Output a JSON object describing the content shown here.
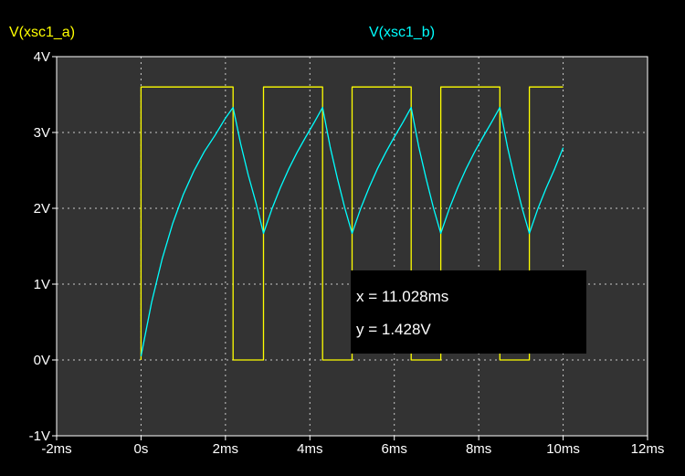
{
  "legend": {
    "a": "V(xsc1_a)",
    "b": "V(xsc1_b)"
  },
  "cursor": {
    "x_text": "x = 11.028ms",
    "y_text": "y = 1.428V"
  },
  "chart_data": {
    "type": "line",
    "xlim": [
      -2,
      12
    ],
    "ylim": [
      -1,
      4
    ],
    "xticks": [
      -2,
      0,
      2,
      4,
      6,
      8,
      10,
      12
    ],
    "xtick_labels": [
      "-2ms",
      "0s",
      "2ms",
      "4ms",
      "6ms",
      "8ms",
      "10ms",
      "12ms"
    ],
    "yticks": [
      -1,
      0,
      1,
      2,
      3,
      4
    ],
    "ytick_labels": [
      "-1V",
      "0V",
      "1V",
      "2V",
      "3V",
      "4V"
    ],
    "grid": true,
    "colors": {
      "background": "#333333",
      "grid": "#c8c8c8",
      "series_a": "#ffff00",
      "series_b": "#00ffff"
    },
    "series": [
      {
        "name": "V(xsc1_a)",
        "x": [
          0,
          0,
          2.18,
          2.18,
          2.9,
          2.9,
          4.3,
          4.3,
          5.0,
          5.0,
          6.4,
          6.4,
          7.1,
          7.1,
          8.5,
          8.5,
          9.2,
          9.2,
          10.0
        ],
        "y": [
          0,
          3.6,
          3.6,
          0,
          0,
          3.6,
          3.6,
          0,
          0,
          3.6,
          3.6,
          0,
          0,
          3.6,
          3.6,
          0,
          0,
          3.6,
          3.6
        ]
      },
      {
        "name": "V(xsc1_b)",
        "x": [
          0,
          0.25,
          0.5,
          0.75,
          1.0,
          1.25,
          1.5,
          1.75,
          2.0,
          2.18,
          2.36,
          2.54,
          2.72,
          2.9,
          3.1,
          3.3,
          3.5,
          3.7,
          3.9,
          4.1,
          4.3,
          4.48,
          4.65,
          4.83,
          5.0,
          5.2,
          5.4,
          5.6,
          5.8,
          6.0,
          6.2,
          6.4,
          6.58,
          6.75,
          6.93,
          7.1,
          7.3,
          7.5,
          7.7,
          7.9,
          8.1,
          8.3,
          8.5,
          8.68,
          8.85,
          9.03,
          9.2,
          9.4,
          9.6,
          9.8,
          10.0
        ],
        "y": [
          0.05,
          0.76,
          1.33,
          1.8,
          2.18,
          2.49,
          2.75,
          2.96,
          3.19,
          3.33,
          2.85,
          2.44,
          2.08,
          1.67,
          1.99,
          2.27,
          2.52,
          2.74,
          2.94,
          3.13,
          3.33,
          2.81,
          2.4,
          2.0,
          1.67,
          1.99,
          2.27,
          2.52,
          2.74,
          2.94,
          3.13,
          3.33,
          2.81,
          2.4,
          2.0,
          1.67,
          1.99,
          2.27,
          2.52,
          2.74,
          2.94,
          3.13,
          3.33,
          2.81,
          2.4,
          2.0,
          1.67,
          1.99,
          2.27,
          2.52,
          2.8
        ]
      }
    ]
  }
}
